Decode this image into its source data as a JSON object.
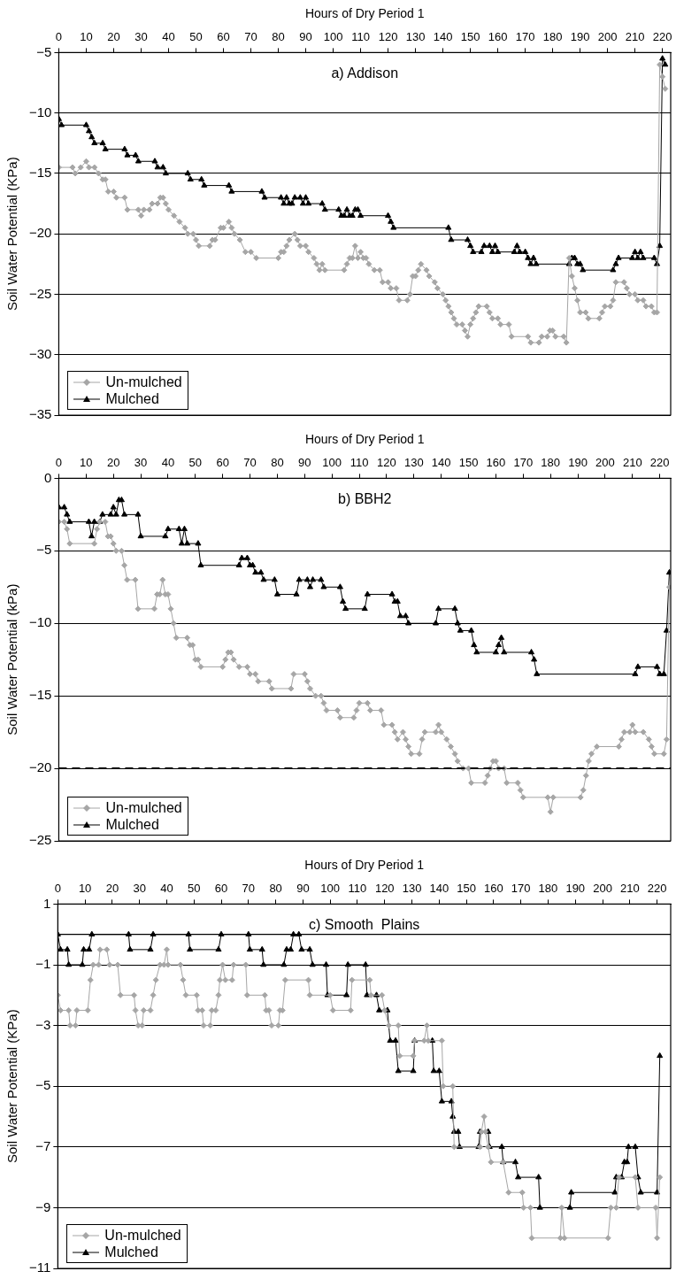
{
  "chart_data": [
    {
      "type": "line",
      "title": "a) Addison",
      "xlabel": "Hours of Dry Period 1",
      "ylabel": "Soil Water Potential (KPa)",
      "xlim": [
        0,
        223
      ],
      "xticks": [
        0,
        10,
        20,
        30,
        40,
        50,
        60,
        70,
        80,
        90,
        100,
        110,
        120,
        130,
        140,
        150,
        160,
        170,
        180,
        190,
        200,
        210,
        220
      ],
      "ylim": [
        -35,
        -5
      ],
      "yticks": [
        {
          "value": -35,
          "label": "−35"
        },
        {
          "value": -30,
          "label": "−30"
        },
        {
          "value": -25,
          "label": "−25"
        },
        {
          "value": -20,
          "label": "−20"
        },
        {
          "value": -15,
          "label": "−15"
        },
        {
          "value": -10,
          "label": "−10"
        },
        {
          "value": -5,
          "label": "−5"
        }
      ],
      "grid": "y",
      "legend": "bottom left",
      "series": [
        {
          "name": "Un-mulched",
          "color": "#a6a6a6",
          "marker": "diamond",
          "x": [
            0,
            5,
            6,
            8,
            10,
            11,
            13,
            14.5,
            16,
            17,
            18,
            20,
            21,
            24,
            25,
            29,
            30,
            31,
            33,
            34,
            36,
            37,
            38,
            39,
            40,
            42,
            44,
            46,
            47,
            49,
            50,
            51,
            55,
            56,
            57,
            59,
            60,
            62,
            63,
            64,
            66,
            68,
            70,
            72,
            80,
            81,
            82,
            83,
            84,
            86,
            87,
            88,
            90,
            91,
            93,
            94,
            95,
            96,
            97,
            104,
            105,
            106,
            107,
            108,
            109,
            110,
            111,
            112,
            113,
            115,
            117,
            118,
            120,
            121,
            123,
            124,
            127,
            128,
            129,
            130,
            131,
            132,
            134,
            135,
            137,
            138,
            140,
            141,
            142,
            143,
            144,
            145,
            147,
            148,
            149,
            150,
            151,
            152,
            153,
            156,
            157,
            158,
            160,
            161,
            164,
            165,
            171,
            172,
            175,
            176,
            178,
            179,
            180,
            181,
            184,
            185,
            186,
            187,
            188,
            189,
            190,
            192,
            193,
            197,
            198,
            199,
            201,
            202,
            203,
            206,
            207,
            208,
            210,
            211,
            213,
            214,
            216,
            217,
            218,
            219,
            220,
            221
          ],
          "values": [
            -14.5,
            -14.5,
            -15,
            -14.5,
            -14,
            -14.5,
            -14.5,
            -15,
            -15.5,
            -15.5,
            -16.5,
            -16.5,
            -17,
            -17,
            -18,
            -18,
            -18.5,
            -18,
            -18,
            -17.5,
            -17.5,
            -17,
            -17,
            -17.5,
            -18,
            -18.5,
            -19,
            -19.5,
            -20,
            -20,
            -20.5,
            -21,
            -21,
            -20.5,
            -20.5,
            -19.5,
            -19.5,
            -19,
            -19.5,
            -20,
            -20.5,
            -21.5,
            -21.5,
            -22,
            -22,
            -21.5,
            -21.5,
            -21,
            -20.5,
            -20,
            -20.5,
            -21,
            -21,
            -21.5,
            -22,
            -22.5,
            -23,
            -22.5,
            -23,
            -23,
            -22.5,
            -22,
            -22,
            -21,
            -22,
            -21.5,
            -22,
            -22,
            -22.5,
            -23,
            -23,
            -24,
            -24,
            -24.5,
            -24.5,
            -25.5,
            -25.5,
            -25,
            -23.5,
            -23.5,
            -23,
            -22.5,
            -23,
            -23.5,
            -24,
            -24.5,
            -25,
            -25.5,
            -26,
            -26.5,
            -27,
            -27.5,
            -27.5,
            -28,
            -28.5,
            -27.5,
            -27,
            -26.5,
            -26,
            -26,
            -26.5,
            -27,
            -27,
            -27.5,
            -27.5,
            -28.5,
            -28.5,
            -29,
            -29,
            -28.5,
            -28.5,
            -28,
            -28,
            -28.5,
            -28.5,
            -29,
            -22,
            -23.5,
            -24.5,
            -25.5,
            -26.5,
            -26.5,
            -27,
            -27,
            -26.5,
            -26,
            -26,
            -25.5,
            -24,
            -24,
            -24.5,
            -25,
            -25,
            -25.5,
            -25.5,
            -26,
            -26,
            -26.5,
            -26.5,
            -6,
            -7,
            -8
          ]
        },
        {
          "name": "Mulched",
          "color": "#000000",
          "marker": "triangle",
          "x": [
            0,
            1,
            10,
            11,
            12,
            13,
            16,
            17,
            24,
            25,
            28,
            29,
            35,
            36,
            38,
            39,
            47,
            48,
            52,
            53,
            62,
            63,
            74,
            75,
            81,
            82,
            83,
            84,
            85,
            86,
            88,
            89,
            90,
            91,
            96,
            97,
            102,
            103,
            104,
            105,
            106,
            107,
            108,
            109,
            110,
            120,
            121,
            122,
            142,
            143,
            149,
            150,
            151,
            154,
            155,
            157,
            158,
            159,
            160,
            166,
            167,
            168,
            170,
            171,
            172,
            173,
            174,
            186,
            187,
            188,
            189,
            190,
            191,
            202,
            203,
            204,
            209,
            210,
            211,
            212,
            213,
            217,
            218,
            219,
            220,
            221
          ],
          "values": [
            -10.5,
            -11,
            -11,
            -11.5,
            -12,
            -12.5,
            -12.5,
            -13,
            -13,
            -13.5,
            -13.5,
            -14,
            -14,
            -14.5,
            -14.5,
            -15,
            -15,
            -15.5,
            -15.5,
            -16,
            -16,
            -16.5,
            -16.5,
            -17,
            -17,
            -17.5,
            -17,
            -17.5,
            -17.5,
            -17,
            -17,
            -17.5,
            -17,
            -17.5,
            -17.5,
            -18,
            -18,
            -18.5,
            -18.5,
            -18,
            -18.5,
            -18.5,
            -18,
            -18,
            -18.5,
            -18.5,
            -19,
            -19.5,
            -19.5,
            -20.5,
            -20.5,
            -21,
            -21.5,
            -21.5,
            -21,
            -21,
            -21.5,
            -21,
            -21.5,
            -21.5,
            -21,
            -21.5,
            -21.5,
            -22,
            -22.5,
            -22,
            -22.5,
            -22.5,
            -22,
            -22,
            -22.5,
            -22.5,
            -23,
            -23,
            -22.5,
            -22,
            -22,
            -21.5,
            -22,
            -21.5,
            -22,
            -22,
            -22.5,
            -21,
            -5.5,
            -6
          ]
        }
      ]
    },
    {
      "type": "line",
      "title": "b) BBH2",
      "xlabel": "Hours of Dry Period 1",
      "ylabel": "Soil Water Potential (kPa)",
      "xlim": [
        0,
        224
      ],
      "xticks": [
        0,
        10,
        20,
        30,
        40,
        50,
        60,
        70,
        80,
        90,
        100,
        110,
        120,
        130,
        140,
        150,
        160,
        170,
        180,
        190,
        200,
        210,
        220
      ],
      "ylim": [
        -25,
        0
      ],
      "yticks": [
        {
          "value": -25,
          "label": "−25"
        },
        {
          "value": -20,
          "label": "−20"
        },
        {
          "value": -15,
          "label": "−15"
        },
        {
          "value": -10,
          "label": "−10"
        },
        {
          "value": -5,
          "label": "−5"
        },
        0
      ],
      "grid": "y",
      "legend": "bottom left",
      "ref_lines": [
        {
          "axis": "y",
          "value": -20,
          "color": "#000000",
          "line_style": "dashed"
        }
      ],
      "series": [
        {
          "name": "Un-mulched",
          "color": "#a6a6a6",
          "marker": "diamond",
          "x": [
            0,
            2,
            3,
            4,
            13,
            14,
            15,
            17,
            18,
            19,
            20,
            21,
            23,
            24,
            25,
            28,
            29,
            35,
            36,
            37,
            38,
            39,
            40,
            41,
            42,
            43,
            47,
            48,
            49,
            50,
            51,
            52,
            60,
            61,
            62,
            63,
            64,
            66,
            69,
            70,
            72,
            73,
            77,
            78,
            85,
            86,
            90,
            91,
            92,
            94,
            96,
            97,
            98,
            102,
            103,
            108,
            109,
            110,
            113,
            114,
            118,
            119,
            122,
            123,
            124,
            126,
            127,
            128,
            129,
            132,
            133,
            134,
            138,
            139,
            140,
            142,
            143.5,
            145,
            146,
            148,
            150,
            151,
            156,
            157,
            158,
            159,
            160,
            161,
            163,
            164,
            168,
            169,
            170,
            179,
            180,
            181,
            191,
            192,
            193,
            194,
            195,
            197,
            205,
            206,
            207,
            209,
            210,
            211,
            214,
            216,
            217,
            218,
            221.5,
            222.5,
            223.5
          ],
          "values": [
            -3,
            -3,
            -3.5,
            -4.5,
            -4.5,
            -3.5,
            -3,
            -3,
            -4,
            -4,
            -4.5,
            -5,
            -5,
            -6,
            -7,
            -7,
            -9,
            -9,
            -8,
            -8,
            -7,
            -8,
            -8,
            -9,
            -10,
            -11,
            -11,
            -11.5,
            -11.5,
            -12.5,
            -12.5,
            -13,
            -13,
            -12.5,
            -12,
            -12,
            -12.5,
            -13,
            -13,
            -13.5,
            -13.5,
            -14,
            -14,
            -14.5,
            -14.5,
            -13.5,
            -13.5,
            -14,
            -14.5,
            -15,
            -15,
            -15.5,
            -16,
            -16,
            -16.5,
            -16.5,
            -16,
            -15.5,
            -15.5,
            -16,
            -16,
            -17,
            -17,
            -17.5,
            -18,
            -17.5,
            -18,
            -18.5,
            -19,
            -19,
            -18,
            -17.5,
            -17.5,
            -17,
            -17.5,
            -18,
            -18.5,
            -19,
            -19.5,
            -20,
            -20,
            -21,
            -21,
            -20.5,
            -20,
            -19.5,
            -19.5,
            -20,
            -20,
            -21,
            -21,
            -21.5,
            -22,
            -22,
            -23,
            -22,
            -22,
            -21.5,
            -20.5,
            -19.5,
            -19,
            -18.5,
            -18.5,
            -18,
            -17.5,
            -17.5,
            -17,
            -17.5,
            -17.5,
            -18,
            -18.5,
            -19,
            -19,
            -18,
            -7.5
          ]
        },
        {
          "name": "Mulched",
          "color": "#000000",
          "marker": "triangle",
          "x": [
            0,
            2,
            3,
            4,
            11,
            12,
            13,
            15,
            16,
            19,
            20,
            21,
            22,
            23,
            24,
            29,
            30,
            39,
            40,
            44,
            45,
            46,
            47,
            51,
            52,
            66,
            67,
            69,
            70,
            71,
            72,
            74,
            75,
            79,
            80,
            87,
            88,
            91,
            92,
            93,
            96,
            97,
            103,
            104,
            105,
            112,
            113,
            122,
            123,
            124,
            125,
            127,
            128,
            138,
            139,
            145,
            146,
            147,
            151,
            152,
            153,
            160,
            161,
            162,
            163,
            173,
            174,
            175,
            211,
            212,
            219,
            220,
            221.5,
            222.5,
            223.5
          ],
          "values": [
            -2,
            -2,
            -2.5,
            -3,
            -3,
            -4,
            -3,
            -3,
            -2.5,
            -2.5,
            -2,
            -2.5,
            -1.5,
            -1.5,
            -2.5,
            -2.5,
            -4,
            -4,
            -3.5,
            -3.5,
            -4.5,
            -3.5,
            -4.5,
            -4.5,
            -6,
            -6,
            -5.5,
            -5.5,
            -6,
            -6,
            -6.5,
            -6.5,
            -7,
            -7,
            -8,
            -8,
            -7,
            -7,
            -7.5,
            -7,
            -7,
            -7.5,
            -7.5,
            -8.5,
            -9,
            -9,
            -8,
            -8,
            -8.5,
            -8.5,
            -9.5,
            -9.5,
            -10,
            -10,
            -9,
            -9,
            -10,
            -10.5,
            -10.5,
            -11.5,
            -12,
            -12,
            -11.5,
            -11,
            -12,
            -12,
            -12.5,
            -13.5,
            -13.5,
            -13,
            -13,
            -13.5,
            -13.5,
            -10.5,
            -6.5
          ]
        }
      ]
    },
    {
      "type": "line",
      "title": "c) Smooth  Plains",
      "xlabel": "Hours of Dry Period 1",
      "ylabel": "Soil Water Potential (KPa)",
      "xlim": [
        0,
        225
      ],
      "xticks": [
        0,
        10,
        20,
        30,
        40,
        50,
        60,
        70,
        80,
        90,
        100,
        110,
        120,
        130,
        140,
        150,
        160,
        170,
        180,
        190,
        200,
        210,
        220
      ],
      "ylim": [
        -11,
        1
      ],
      "yticks": [
        {
          "value": -11,
          "label": "−11"
        },
        {
          "value": -9,
          "label": "−9"
        },
        {
          "value": -7,
          "label": "−7"
        },
        {
          "value": -5,
          "label": "−5"
        },
        {
          "value": -3,
          "label": "−3"
        },
        {
          "value": -1,
          "label": "−1"
        },
        1
      ],
      "grid": "y",
      "legend": "bottom left",
      "ref_lines": [
        {
          "axis": "y",
          "value": 0,
          "color": "#000000",
          "line_style": "solid"
        }
      ],
      "series": [
        {
          "name": "Un-mulched",
          "color": "#a6a6a6",
          "marker": "diamond",
          "x": [
            0,
            1,
            4,
            4.5,
            6.5,
            7,
            11,
            12,
            13,
            15,
            15.5,
            18,
            19,
            22,
            23,
            28,
            28.5,
            29.5,
            31,
            31.5,
            34,
            35,
            36,
            37.5,
            39,
            40,
            40.5,
            45,
            46,
            47,
            51,
            51.5,
            53,
            53.5,
            56,
            56.5,
            58,
            59,
            59.5,
            60.5,
            61.5,
            64,
            64.5,
            69,
            69.5,
            76,
            76.5,
            77.5,
            78.5,
            81,
            81.5,
            82.5,
            83.5,
            92,
            92.5,
            100,
            101,
            107.5,
            108,
            114.5,
            115,
            119,
            120,
            121.5,
            125,
            125.5,
            130.5,
            131,
            134.5,
            135.5,
            136,
            141,
            141.5,
            145,
            145.5,
            155,
            155.5,
            156.5,
            157,
            158,
            159,
            163.5,
            165.5,
            170.5,
            171,
            173.5,
            174,
            184.5,
            185,
            186,
            202,
            203,
            205,
            206,
            212,
            213,
            219.5,
            220,
            221
          ],
          "values": [
            -2,
            -2.5,
            -2.5,
            -3,
            -3,
            -2.5,
            -2.5,
            -1.5,
            -1,
            -1,
            -0.5,
            -0.5,
            -1,
            -1,
            -2,
            -2,
            -2.5,
            -3,
            -3,
            -2.5,
            -2.5,
            -2,
            -1.5,
            -1,
            -1,
            -0.5,
            -1,
            -1,
            -1.5,
            -2,
            -2,
            -2.5,
            -2.5,
            -3,
            -3,
            -2.5,
            -2.5,
            -2,
            -1.5,
            -1,
            -1.5,
            -1.5,
            -1,
            -1,
            -2,
            -2,
            -2.5,
            -2.5,
            -3,
            -3,
            -2.5,
            -2.5,
            -1.5,
            -1.5,
            -2,
            -2,
            -2.5,
            -2.5,
            -1.5,
            -1.5,
            -2,
            -2,
            -2.5,
            -3,
            -3,
            -4,
            -4,
            -3.5,
            -3.5,
            -3,
            -3.5,
            -3.5,
            -5,
            -5,
            -7,
            -7,
            -6.5,
            -6,
            -6.5,
            -7,
            -7.5,
            -7.5,
            -8.5,
            -8.5,
            -9,
            -9,
            -10,
            -10,
            -9,
            -10,
            -10,
            -9,
            -9,
            -8,
            -8,
            -9,
            -9,
            -10,
            -8
          ]
        },
        {
          "name": "Mulched",
          "color": "#000000",
          "marker": "triangle",
          "x": [
            0,
            1,
            3.5,
            4,
            9,
            9.5,
            11.5,
            12.5,
            26,
            26.5,
            34,
            35,
            48,
            48.5,
            59,
            60,
            70,
            70.5,
            75,
            75.5,
            83,
            84,
            85.5,
            86.5,
            88.5,
            89.5,
            92.5,
            93.5,
            98.5,
            99,
            106,
            106.5,
            113,
            113.5,
            117,
            118,
            121,
            122,
            124,
            125,
            130.5,
            131,
            137.5,
            138,
            140,
            141,
            144.5,
            145,
            145.5,
            147,
            147.5,
            154.5,
            155,
            158,
            158.5,
            163,
            163.5,
            168,
            169,
            176.5,
            177,
            188,
            188.5,
            204.5,
            205,
            207,
            208,
            209,
            209.5,
            212,
            213,
            214,
            220,
            221
          ],
          "values": [
            0,
            -0.5,
            -0.5,
            -1,
            -1,
            -0.5,
            -0.5,
            0,
            0,
            -0.5,
            -0.5,
            0,
            0,
            -0.5,
            -0.5,
            0,
            0,
            -0.5,
            -0.5,
            -1,
            -1,
            -0.5,
            -0.5,
            0,
            0,
            -0.5,
            -0.5,
            -1,
            -1,
            -2,
            -2,
            -1,
            -1,
            -2,
            -2,
            -2.5,
            -2.5,
            -3.5,
            -3.5,
            -4.5,
            -4.5,
            -3.5,
            -3.5,
            -4.5,
            -4.5,
            -5.5,
            -5.5,
            -6,
            -6.5,
            -6.5,
            -7,
            -7,
            -6.5,
            -6.5,
            -7,
            -7,
            -7.5,
            -7.5,
            -8,
            -8,
            -9,
            -9,
            -8.5,
            -8.5,
            -8,
            -8,
            -7.5,
            -7.5,
            -7,
            -7,
            -8,
            -8.5,
            -8.5,
            -4
          ]
        }
      ]
    }
  ]
}
